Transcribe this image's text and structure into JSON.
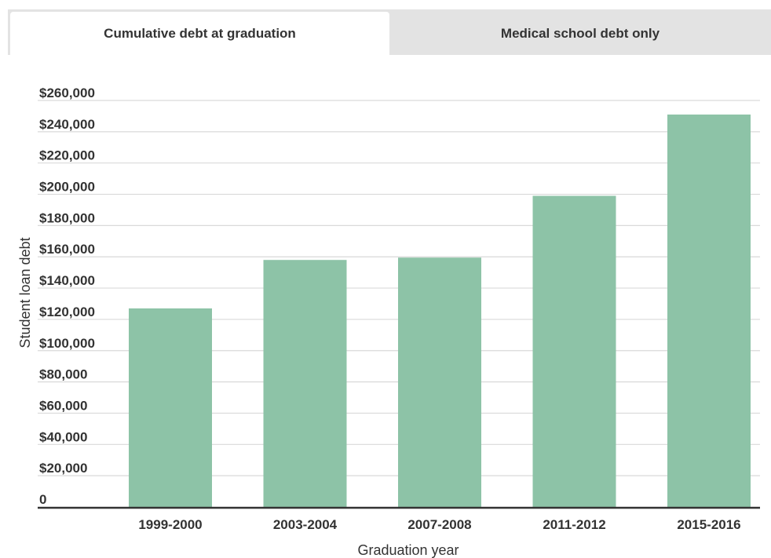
{
  "tabs": [
    {
      "label": "Cumulative debt at graduation",
      "active": true
    },
    {
      "label": "Medical school debt only",
      "active": false
    }
  ],
  "chart_data": {
    "type": "bar",
    "title": "",
    "xlabel": "Graduation year",
    "ylabel": "Student loan debt",
    "categories": [
      "1999-2000",
      "2003-2004",
      "2007-2008",
      "2011-2012",
      "2015-2016"
    ],
    "values": [
      127000,
      158000,
      159500,
      199000,
      251000
    ],
    "ylim": [
      0,
      260000
    ],
    "yticks": [
      0,
      20000,
      40000,
      60000,
      80000,
      100000,
      120000,
      140000,
      160000,
      180000,
      200000,
      220000,
      240000,
      260000
    ],
    "ytick_labels": [
      "0",
      "$20,000",
      "$40,000",
      "$60,000",
      "$80,000",
      "$100,000",
      "$120,000",
      "$140,000",
      "$160,000",
      "$180,000",
      "$200,000",
      "$220,000",
      "$240,000",
      "$260,000"
    ],
    "grid": true,
    "bar_color": "#8dc3a7",
    "grid_color": "#d9d9d9",
    "axis_color": "#333333"
  }
}
